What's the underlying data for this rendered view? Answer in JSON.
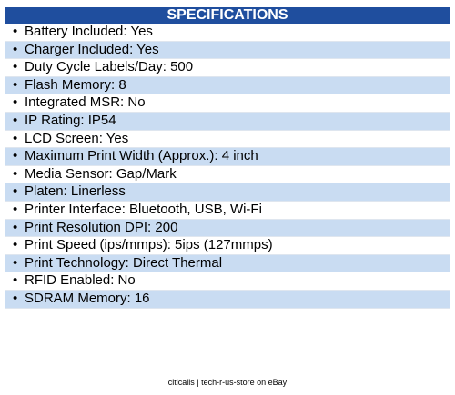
{
  "header": {
    "title": "SPECIFICATIONS"
  },
  "items": [
    "Battery Included: Yes",
    "Charger Included: Yes",
    "Duty Cycle Labels/Day: 500",
    "Flash Memory: 8",
    "Integrated MSR: No",
    "IP Rating: IP54",
    "LCD Screen: Yes",
    "Maximum Print Width (Approx.): 4 inch",
    "Media Sensor: Gap/Mark",
    "Platen: Linerless",
    "Printer Interface: Bluetooth, USB, Wi-Fi",
    "Print Resolution DPI: 200",
    "Print Speed (ips/mmps): 5ips (127mmps)",
    "Print Technology: Direct Thermal",
    "RFID Enabled: No",
    "SDRAM Memory: 16"
  ],
  "footer": "citicalls | tech-r-us-store on eBay"
}
